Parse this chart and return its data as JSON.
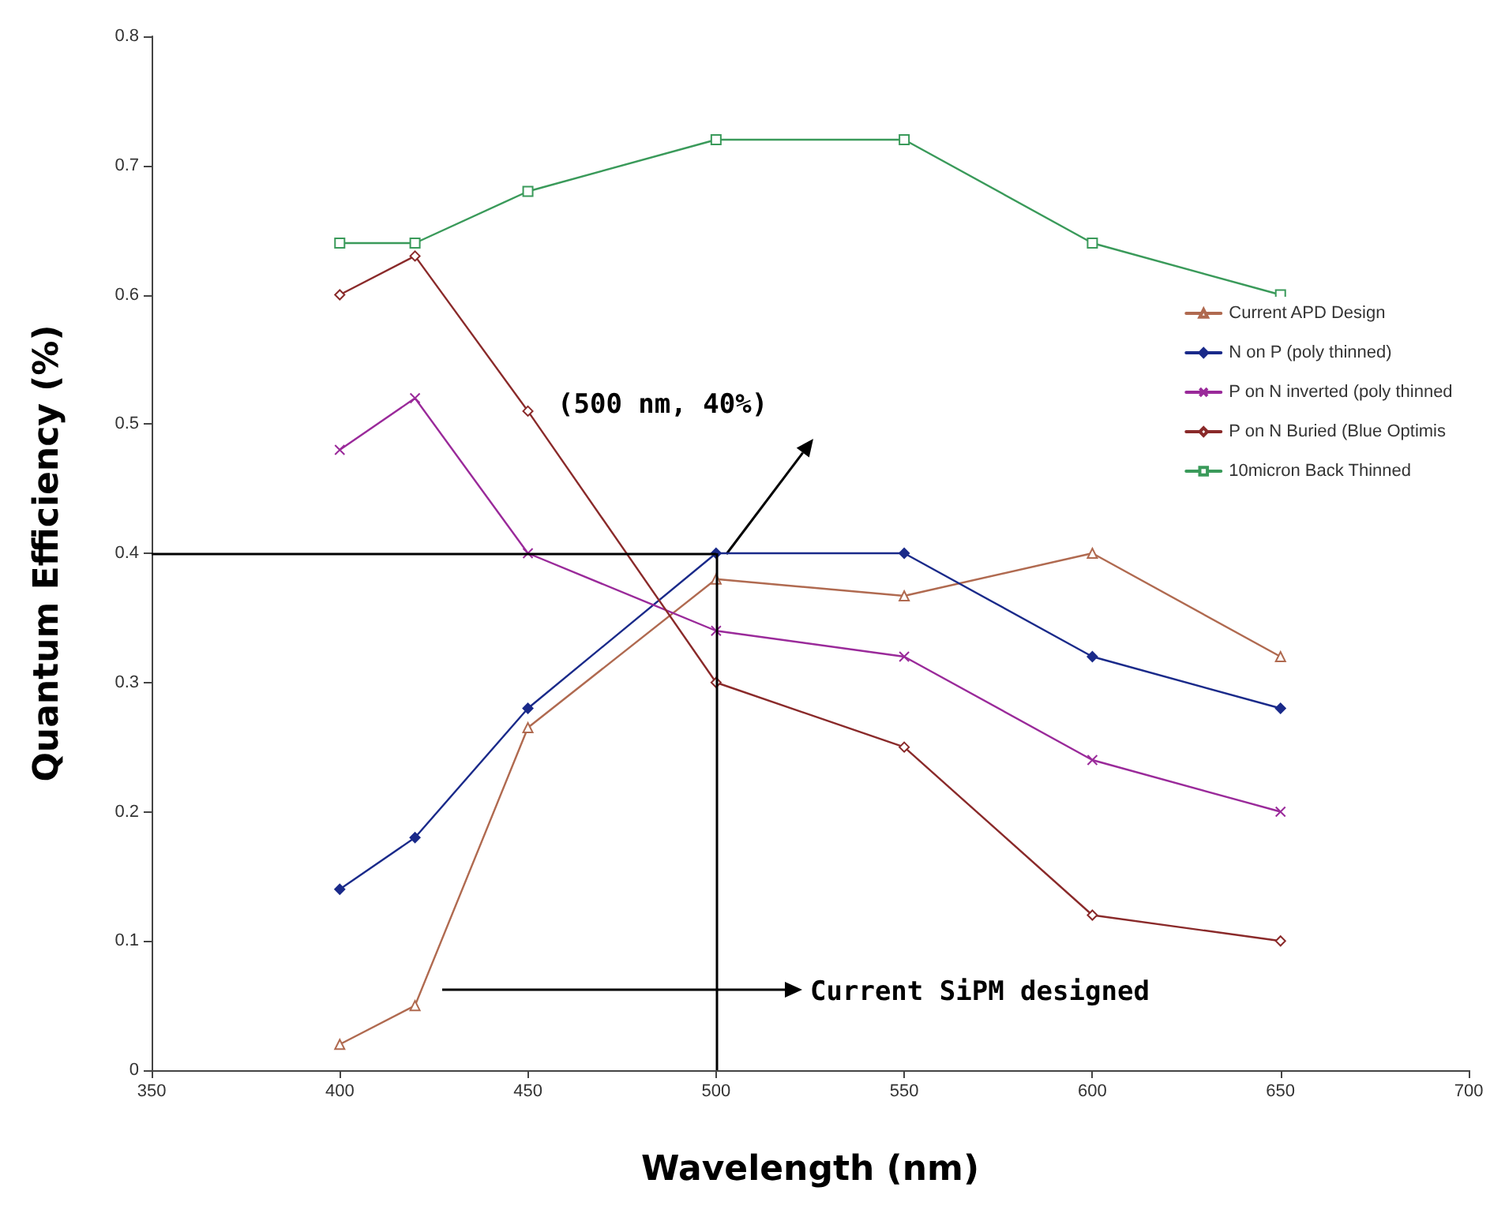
{
  "chart_data": {
    "type": "line",
    "xlabel": "Wavelength (nm)",
    "ylabel": "Quantum Efficiency (%)",
    "x": [
      400,
      420,
      450,
      500,
      550,
      600,
      650
    ],
    "series": [
      {
        "name": "Current APD Design",
        "color": "#b06a50",
        "marker": "triangle",
        "values": [
          0.02,
          0.05,
          0.265,
          0.38,
          0.367,
          0.4,
          0.32
        ]
      },
      {
        "name": "N on P (poly thinned)",
        "color": "#1a2a8a",
        "marker": "diamond",
        "values": [
          0.14,
          0.18,
          0.28,
          0.4,
          0.4,
          0.32,
          0.28
        ]
      },
      {
        "name": "P on N inverted (poly thinned",
        "color": "#9a2a9a",
        "marker": "cross",
        "values": [
          0.48,
          0.52,
          0.4,
          0.34,
          0.32,
          0.24,
          0.2
        ]
      },
      {
        "name": "P on N Buried (Blue Optimis",
        "color": "#8a2a2a",
        "marker": "diamond",
        "values": [
          0.6,
          0.63,
          0.51,
          0.3,
          0.25,
          0.12,
          0.1
        ]
      },
      {
        "name": "10micron Back Thinned",
        "color": "#3a9a5a",
        "marker": "square",
        "values": [
          0.64,
          0.64,
          0.68,
          0.72,
          0.72,
          0.64,
          0.6
        ]
      }
    ],
    "xlim": [
      350,
      700
    ],
    "xticks": [
      350,
      400,
      450,
      500,
      550,
      600,
      650,
      700
    ],
    "ylim": [
      0,
      0.8
    ],
    "yticks": [
      0,
      0.1,
      0.2,
      0.3,
      0.4,
      0.5,
      0.6,
      0.7,
      0.8
    ],
    "grid": false,
    "legend": "right",
    "line_style": "solid",
    "ref_lines": [
      {
        "axis": "y",
        "value": 0.4,
        "color": "#000000"
      },
      {
        "axis": "x",
        "value": 500,
        "color": "#000000"
      }
    ],
    "annotations": [
      "(500 nm, 40%)",
      "Current SiPM designed"
    ]
  }
}
